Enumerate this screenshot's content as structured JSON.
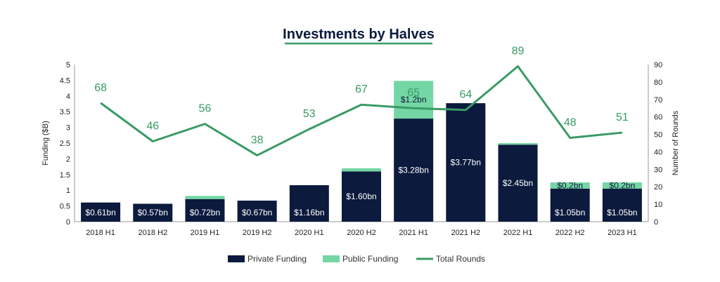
{
  "colors": {
    "private": "#0b1a3d",
    "public": "#74d6a4",
    "rounds": "#3a9a66",
    "title": "#0b1a3d",
    "title_underline": "#3a9a66",
    "axis": "#999999"
  },
  "chart_data": {
    "type": "bar",
    "title": "Investments by Halves",
    "ylabel": "Funding ($B)",
    "y2label": "Number of Rounds",
    "ylim": [
      0,
      5
    ],
    "y2lim": [
      0,
      90
    ],
    "yticks": [
      "0",
      "0.5",
      "1",
      "1.5",
      "2",
      "2.5",
      "3",
      "3.5",
      "4",
      "4.5",
      "5"
    ],
    "y2ticks": [
      "0",
      "10",
      "20",
      "30",
      "40",
      "50",
      "60",
      "70",
      "80",
      "90"
    ],
    "categories": [
      "2018 H1",
      "2018 H2",
      "2019 H1",
      "2019 H2",
      "2020 H1",
      "2020 H2",
      "2021 H1",
      "2021 H2",
      "2022 H1",
      "2022 H2",
      "2023 H1"
    ],
    "series": [
      {
        "name": "Private Funding",
        "kind": "stacked-bar",
        "values": [
          0.61,
          0.57,
          0.72,
          0.67,
          1.16,
          1.6,
          3.28,
          3.77,
          2.45,
          1.05,
          1.05
        ],
        "labels": [
          "$0.61bn",
          "$0.57bn",
          "$0.72bn",
          "$0.67bn",
          "$1.16bn",
          "$1.60bn",
          "$3.28bn",
          "$3.77bn",
          "$2.45bn",
          "$1.05bn",
          "$1.05bn"
        ]
      },
      {
        "name": "Public Funding",
        "kind": "stacked-bar",
        "values": [
          0,
          0,
          0.1,
          0,
          0,
          0.1,
          1.2,
          0,
          0.05,
          0.2,
          0.2
        ],
        "labels": [
          "",
          "",
          "",
          "",
          "",
          "",
          "$1.2bn",
          "",
          "",
          "$0.2bn",
          "$0.2bn"
        ]
      },
      {
        "name": "Total Rounds",
        "kind": "line",
        "axis": "right",
        "values": [
          68,
          46,
          56,
          38,
          53,
          67,
          65,
          64,
          89,
          48,
          51
        ],
        "labels": [
          "68",
          "46",
          "56",
          "38",
          "53",
          "67",
          "65",
          "64",
          "89",
          "48",
          "51"
        ]
      }
    ],
    "legend": [
      "Private Funding",
      "Public Funding",
      "Total Rounds"
    ],
    "legend_position": "bottom-center",
    "grid": false
  }
}
